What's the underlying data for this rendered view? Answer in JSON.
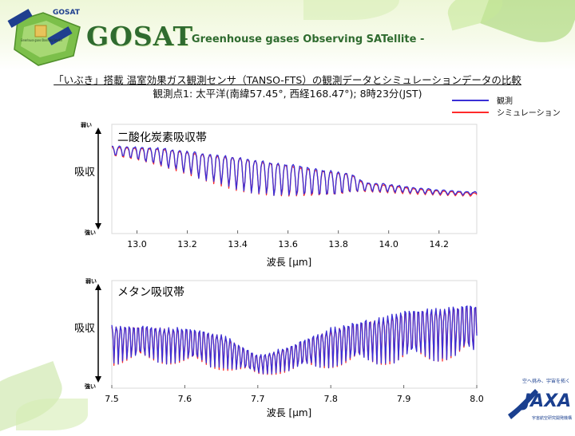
{
  "header": {
    "title": "GOSAT",
    "subtitle": "- Greenhouse gases Observing SATellite -",
    "logo_badge": "GOSAT",
    "logo_caption": "Greenhouse gases Observing Satellite"
  },
  "slide": {
    "title": "「いぶき」搭載 温室効果ガス観測センサ（TANSO-FTS）の観測データとシミュレーションデータの比較",
    "subtitle": "観測点1: 太平洋(南緯57.45°, 西経168.47°); 8時23分(JST)"
  },
  "legend": {
    "observed": "観測",
    "simulation": "シミュレーション"
  },
  "colors": {
    "observed": "#3a2fd6",
    "simulation": "#ff2a2a",
    "brand_green": "#2f6b2f"
  },
  "chart_data": [
    {
      "type": "line",
      "title": "二酸化炭素吸収帯",
      "xlabel": "波長 [μm]",
      "ylabel": "吸収",
      "ylabel_top": "弱い",
      "ylabel_bottom": "強い",
      "xlim": [
        12.9,
        14.35
      ],
      "ylim": [
        0,
        1
      ],
      "xticks": [
        13.0,
        13.2,
        13.4,
        13.6,
        13.8,
        14.0,
        14.2
      ],
      "xtick_labels": [
        "13.0",
        "13.2",
        "13.4",
        "13.6",
        "13.8",
        "14.0",
        "14.2"
      ],
      "series": [
        {
          "name": "観測",
          "color": "#3a2fd6",
          "role": "observed"
        },
        {
          "name": "シミュレーション",
          "color": "#ff2a2a",
          "role": "simulation"
        }
      ],
      "envelope": {
        "x": [
          12.9,
          13.0,
          13.1,
          13.2,
          13.3,
          13.4,
          13.5,
          13.6,
          13.7,
          13.8,
          13.85,
          13.9,
          14.0,
          14.1,
          14.2,
          14.35
        ],
        "upper": [
          0.8,
          0.79,
          0.78,
          0.75,
          0.72,
          0.7,
          0.66,
          0.63,
          0.59,
          0.56,
          0.55,
          0.47,
          0.45,
          0.42,
          0.4,
          0.38
        ],
        "lower": [
          0.72,
          0.68,
          0.62,
          0.55,
          0.47,
          0.4,
          0.36,
          0.34,
          0.34,
          0.35,
          0.38,
          0.39,
          0.38,
          0.37,
          0.36,
          0.35
        ]
      },
      "line_spacing_um": 0.03
    },
    {
      "type": "line",
      "title": "メタン吸収帯",
      "xlabel": "波長 [μm]",
      "ylabel": "吸収",
      "ylabel_top": "弱い",
      "ylabel_bottom": "強い",
      "xlim": [
        7.5,
        8.0
      ],
      "ylim": [
        0,
        1
      ],
      "xticks": [
        7.5,
        7.6,
        7.7,
        7.8,
        7.9,
        8.0
      ],
      "xtick_labels": [
        "7.5",
        "7.6",
        "7.7",
        "7.8",
        "7.9",
        "8.0"
      ],
      "series": [
        {
          "name": "観測",
          "color": "#3a2fd6",
          "role": "observed"
        },
        {
          "name": "シミュレーション",
          "color": "#ff2a2a",
          "role": "simulation"
        }
      ],
      "envelope": {
        "x": [
          7.5,
          7.55,
          7.6,
          7.65,
          7.7,
          7.75,
          7.8,
          7.85,
          7.9,
          7.95,
          8.0
        ],
        "upper": [
          0.58,
          0.57,
          0.55,
          0.5,
          0.3,
          0.4,
          0.55,
          0.62,
          0.7,
          0.74,
          0.76
        ],
        "lower": [
          0.22,
          0.25,
          0.22,
          0.18,
          0.12,
          0.16,
          0.2,
          0.22,
          0.24,
          0.26,
          0.28
        ]
      },
      "line_spacing_um": 0.006
    }
  ],
  "jaxa": {
    "tagline": "空へ挑み、宇宙を拓く",
    "logo": "JAXA",
    "org": "宇宙航空研究開発機構"
  }
}
